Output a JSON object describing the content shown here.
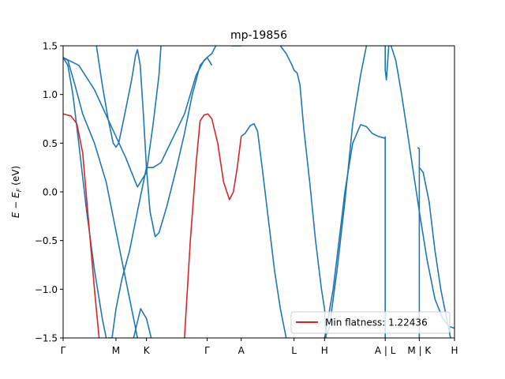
{
  "chart_data": {
    "type": "line",
    "title": "mp-19856",
    "xlabel": "",
    "ylabel": "E − E_F (eV)",
    "ylim": [
      -1.5,
      1.5
    ],
    "xlim": [
      0,
      1
    ],
    "grid": false,
    "legend_placement": "lower-right",
    "yticks": [
      1.5,
      1.0,
      0.5,
      0.0,
      -0.5,
      -1.0,
      -1.5
    ],
    "ytick_labels": [
      "1.5",
      "1.0",
      "0.5",
      "0.0",
      "−0.5",
      "−1.0",
      "−1.5"
    ],
    "kpoints": [
      {
        "label": "Γ",
        "x": 0.0
      },
      {
        "label": "M",
        "x": 0.135
      },
      {
        "label": "K",
        "x": 0.213
      },
      {
        "label": "Γ",
        "x": 0.368
      },
      {
        "label": "A",
        "x": 0.455
      },
      {
        "label": "L",
        "x": 0.59
      },
      {
        "label": "H",
        "x": 0.668
      },
      {
        "label": "A | L",
        "x": 0.823
      },
      {
        "label": "M | K",
        "x": 0.91
      },
      {
        "label": "H",
        "x": 1.0
      }
    ],
    "band_color": "#1f77b4",
    "flat_color": "#d62728",
    "series": [
      {
        "name": "Min flatness: 1.22436",
        "color": "#d62728",
        "segments": [
          [
            [
              0.0,
              0.8
            ],
            [
              0.02,
              0.78
            ],
            [
              0.035,
              0.7
            ],
            [
              0.05,
              0.4
            ],
            [
              0.065,
              -0.3
            ],
            [
              0.08,
              -1.0
            ],
            [
              0.092,
              -1.5
            ]
          ],
          [
            [
              0.31,
              -1.5
            ],
            [
              0.325,
              -0.5
            ],
            [
              0.34,
              0.3
            ],
            [
              0.35,
              0.73
            ],
            [
              0.36,
              0.79
            ],
            [
              0.37,
              0.8
            ],
            [
              0.38,
              0.75
            ],
            [
              0.395,
              0.5
            ],
            [
              0.41,
              0.1
            ],
            [
              0.425,
              -0.08
            ],
            [
              0.435,
              0.0
            ],
            [
              0.445,
              0.25
            ],
            [
              0.455,
              0.57
            ]
          ]
        ]
      },
      {
        "name": "",
        "color": "#1f77b4",
        "segments": [
          [
            [
              0.0,
              1.38
            ],
            [
              0.012,
              1.35
            ],
            [
              0.03,
              1.1
            ],
            [
              0.05,
              0.8
            ],
            [
              0.08,
              0.5
            ],
            [
              0.11,
              0.1
            ],
            [
              0.14,
              -0.5
            ],
            [
              0.165,
              -1.0
            ],
            [
              0.18,
              -1.3
            ],
            [
              0.19,
              -1.5
            ]
          ],
          [
            [
              0.0,
              1.38
            ],
            [
              0.012,
              1.3
            ],
            [
              0.025,
              1.0
            ],
            [
              0.04,
              0.5
            ],
            [
              0.06,
              -0.2
            ],
            [
              0.08,
              -0.8
            ],
            [
              0.1,
              -1.3
            ],
            [
              0.11,
              -1.5
            ]
          ],
          [
            [
              0.085,
              1.5
            ],
            [
              0.1,
              1.1
            ],
            [
              0.115,
              0.75
            ],
            [
              0.128,
              0.5
            ],
            [
              0.135,
              0.46
            ],
            [
              0.142,
              0.5
            ],
            [
              0.155,
              0.75
            ],
            [
              0.175,
              1.15
            ],
            [
              0.185,
              1.4
            ],
            [
              0.19,
              1.46
            ],
            [
              0.197,
              1.3
            ],
            [
              0.205,
              0.8
            ],
            [
              0.213,
              0.25
            ],
            [
              0.222,
              -0.2
            ],
            [
              0.235,
              -0.46
            ],
            [
              0.245,
              -0.42
            ],
            [
              0.265,
              -0.15
            ],
            [
              0.29,
              0.25
            ],
            [
              0.31,
              0.6
            ],
            [
              0.33,
              1.0
            ],
            [
              0.35,
              1.3
            ],
            [
              0.368,
              1.38
            ],
            [
              0.38,
              1.42
            ],
            [
              0.39,
              1.5
            ]
          ],
          [
            [
              0.0,
              1.38
            ],
            [
              0.04,
              1.3
            ],
            [
              0.08,
              1.05
            ],
            [
              0.12,
              0.7
            ],
            [
              0.16,
              0.35
            ],
            [
              0.19,
              0.05
            ],
            [
              0.213,
              0.2
            ],
            [
              0.23,
              0.7
            ],
            [
              0.245,
              1.2
            ],
            [
              0.25,
              1.5
            ]
          ],
          [
            [
              0.115,
              -1.5
            ],
            [
              0.125,
              -1.5
            ],
            [
              0.135,
              -1.2
            ],
            [
              0.15,
              -0.9
            ],
            [
              0.17,
              -0.6
            ],
            [
              0.19,
              -0.2
            ],
            [
              0.213,
              0.25
            ],
            [
              0.23,
              0.25
            ],
            [
              0.25,
              0.3
            ],
            [
              0.28,
              0.55
            ],
            [
              0.31,
              0.8
            ],
            [
              0.34,
              1.2
            ],
            [
              0.36,
              1.35
            ],
            [
              0.368,
              1.38
            ],
            [
              0.38,
              1.3
            ]
          ],
          [
            [
              0.18,
              -1.5
            ],
            [
              0.198,
              -1.2
            ],
            [
              0.213,
              -1.3
            ],
            [
              0.225,
              -1.5
            ]
          ],
          [
            [
              0.455,
              0.57
            ],
            [
              0.465,
              0.6
            ],
            [
              0.478,
              0.68
            ],
            [
              0.488,
              0.7
            ],
            [
              0.497,
              0.62
            ],
            [
              0.51,
              0.2
            ],
            [
              0.525,
              -0.3
            ],
            [
              0.54,
              -0.8
            ],
            [
              0.555,
              -1.2
            ],
            [
              0.57,
              -1.5
            ]
          ],
          [
            [
              0.43,
              1.5
            ],
            [
              0.44,
              1.5
            ],
            [
              0.455,
              1.5
            ]
          ],
          [
            [
              0.555,
              1.5
            ],
            [
              0.57,
              1.42
            ],
            [
              0.585,
              1.3
            ],
            [
              0.59,
              1.25
            ],
            [
              0.598,
              1.22
            ],
            [
              0.605,
              1.1
            ],
            [
              0.615,
              0.65
            ],
            [
              0.63,
              0.1
            ],
            [
              0.645,
              -0.5
            ],
            [
              0.66,
              -1.0
            ],
            [
              0.668,
              -1.2
            ],
            [
              0.672,
              -1.5
            ]
          ],
          [
            [
              0.668,
              -1.5
            ],
            [
              0.675,
              -1.35
            ],
            [
              0.69,
              -1.0
            ],
            [
              0.705,
              -0.5
            ],
            [
              0.72,
              0.0
            ],
            [
              0.74,
              0.5
            ],
            [
              0.76,
              0.69
            ],
            [
              0.775,
              0.67
            ],
            [
              0.79,
              0.6
            ],
            [
              0.805,
              0.57
            ],
            [
              0.823,
              0.55
            ]
          ],
          [
            [
              0.668,
              -1.5
            ],
            [
              0.68,
              -1.4
            ],
            [
              0.7,
              -0.8
            ],
            [
              0.72,
              -0.1
            ],
            [
              0.74,
              0.7
            ],
            [
              0.76,
              1.2
            ],
            [
              0.775,
              1.5
            ]
          ],
          [
            [
              0.823,
              -1.5
            ],
            [
              0.823,
              0.57
            ]
          ],
          [
            [
              0.823,
              1.5
            ],
            [
              0.823,
              1.25
            ],
            [
              0.826,
              1.15
            ],
            [
              0.832,
              1.5
            ]
          ],
          [
            [
              0.838,
              1.5
            ],
            [
              0.85,
              1.35
            ],
            [
              0.865,
              1.0
            ],
            [
              0.88,
              0.6
            ],
            [
              0.895,
              0.2
            ],
            [
              0.91,
              -0.2
            ],
            [
              0.93,
              -0.7
            ],
            [
              0.95,
              -1.1
            ],
            [
              0.97,
              -1.3
            ],
            [
              0.985,
              -1.38
            ],
            [
              1.0,
              -1.4
            ]
          ],
          [
            [
              0.91,
              -1.5
            ],
            [
              0.91,
              0.45
            ]
          ],
          [
            [
              0.905,
              0.45
            ],
            [
              0.91,
              0.45
            ]
          ],
          [
            [
              0.91,
              0.25
            ],
            [
              0.92,
              0.2
            ],
            [
              0.935,
              -0.1
            ],
            [
              0.95,
              -0.6
            ],
            [
              0.965,
              -1.0
            ],
            [
              0.98,
              -1.3
            ],
            [
              0.99,
              -1.5
            ]
          ]
        ]
      }
    ]
  }
}
